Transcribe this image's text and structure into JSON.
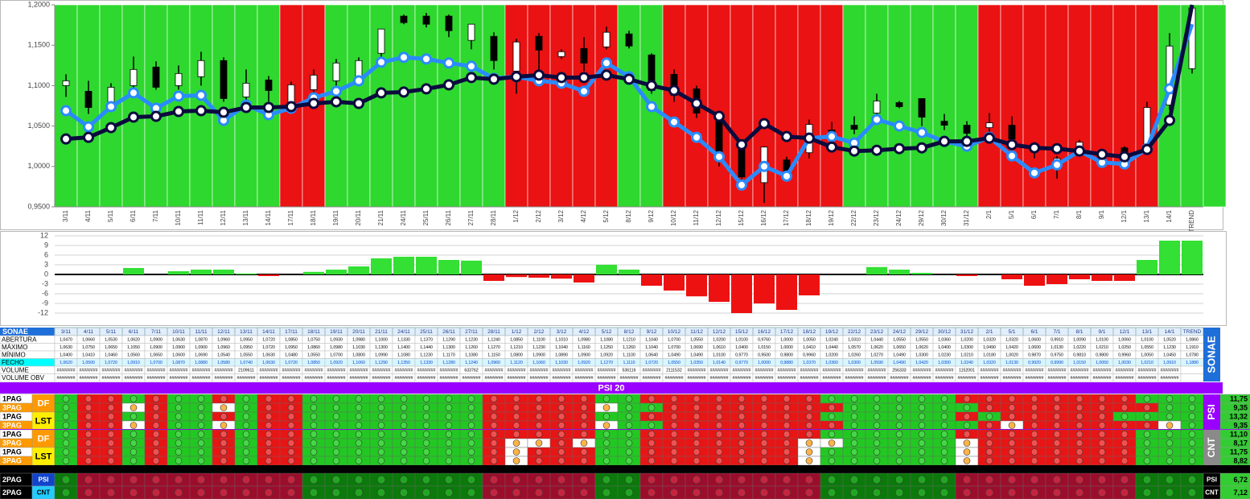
{
  "chart_data": [
    {
      "type": "candlestick",
      "categories": [
        "3/11",
        "4/11",
        "5/11",
        "6/11",
        "7/11",
        "10/11",
        "11/11",
        "12/11",
        "13/11",
        "14/11",
        "17/11",
        "18/11",
        "19/11",
        "20/11",
        "21/11",
        "24/11",
        "25/11",
        "26/11",
        "27/11",
        "28/11",
        "1/12",
        "2/12",
        "3/12",
        "4/12",
        "5/12",
        "8/12",
        "9/12",
        "10/12",
        "11/12",
        "12/12",
        "15/12",
        "16/12",
        "17/12",
        "18/12",
        "19/12",
        "22/12",
        "23/12",
        "24/12",
        "29/12",
        "30/12",
        "31/12",
        "2/1",
        "5/1",
        "6/1",
        "7/1",
        "8/1",
        "9/1",
        "12/1",
        "13/1",
        "14/1",
        "TREND"
      ],
      "open": [
        1.1,
        1.093,
        1.078,
        1.1,
        1.123,
        1.1,
        1.111,
        1.131,
        1.086,
        1.107,
        1.078,
        1.095,
        1.106,
        1.106,
        1.14,
        1.186,
        1.186,
        1.186,
        1.156,
        1.161,
        1.118,
        1.161,
        1.136,
        1.146,
        1.148,
        1.164,
        1.138,
        1.114,
        1.096,
        1.056,
        1.027,
        0.98,
        1.008,
        1.017,
        1.045,
        1.051,
        1.066,
        1.079,
        1.084,
        1.056,
        1.051,
        1.048,
        1.051,
        1.026,
        1.001,
        1.023,
        1.018,
        1.023,
        1.026,
        1.076,
        1.121
      ],
      "high": [
        1.114,
        1.106,
        1.103,
        1.136,
        1.13,
        1.125,
        1.142,
        1.135,
        1.12,
        1.112,
        1.105,
        1.12,
        1.133,
        1.135,
        1.17,
        1.188,
        1.19,
        1.188,
        1.176,
        1.166,
        1.158,
        1.165,
        1.145,
        1.16,
        1.173,
        1.168,
        1.14,
        1.12,
        1.1,
        1.062,
        1.03,
        1.025,
        1.012,
        1.058,
        1.055,
        1.062,
        1.09,
        1.081,
        1.084,
        1.065,
        1.056,
        1.066,
        1.062,
        1.03,
        1.013,
        1.033,
        1.02,
        1.025,
        1.08,
        1.165,
        1.196
      ],
      "low": [
        1.086,
        1.065,
        1.07,
        1.093,
        1.095,
        1.095,
        1.1,
        1.08,
        1.08,
        1.08,
        1.068,
        1.085,
        1.1,
        1.1,
        1.135,
        1.176,
        1.172,
        1.16,
        1.145,
        1.12,
        1.09,
        1.1,
        1.133,
        1.118,
        1.145,
        1.146,
        1.09,
        1.08,
        1.06,
        1.0,
        0.98,
        0.955,
        0.99,
        1.01,
        1.03,
        1.04,
        1.06,
        1.072,
        1.05,
        1.045,
        1.035,
        1.03,
        1.025,
        1.01,
        0.985,
        1.015,
        1.005,
        1.005,
        1.022,
        1.07,
        1.115
      ],
      "close": [
        1.106,
        1.073,
        1.098,
        1.12,
        1.098,
        1.115,
        1.131,
        1.084,
        1.103,
        1.094,
        1.101,
        1.113,
        1.128,
        1.131,
        1.17,
        1.178,
        1.176,
        1.168,
        1.176,
        1.131,
        1.154,
        1.144,
        1.142,
        1.128,
        1.166,
        1.149,
        1.094,
        1.088,
        1.066,
        1.006,
        0.987,
        1.024,
        0.994,
        1.052,
        1.035,
        1.046,
        1.081,
        1.074,
        1.061,
        1.051,
        1.041,
        1.054,
        1.034,
        1.018,
        1.01,
        1.03,
        1.011,
        1.011,
        1.073,
        1.149,
        1.196
      ],
      "up_color": "#ffffff",
      "down_color": "#000000",
      "lines": [
        {
          "color": "#2a8bff",
          "values": [
            1.069,
            1.049,
            1.074,
            1.091,
            1.072,
            1.087,
            1.088,
            1.057,
            1.076,
            1.064,
            1.072,
            1.085,
            1.093,
            1.106,
            1.129,
            1.135,
            1.133,
            1.128,
            1.124,
            1.109,
            1.111,
            1.106,
            1.103,
            1.093,
            1.128,
            1.111,
            1.074,
            1.055,
            1.036,
            1.012,
            0.977,
            1.0,
            0.988,
            1.035,
            1.037,
            1.029,
            1.058,
            1.05,
            1.042,
            1.031,
            1.025,
            1.036,
            1.013,
            0.992,
            1.002,
            1.019,
            1.005,
            1.003,
            1.022,
            1.096,
            1.176
          ]
        },
        {
          "color": "#0b0b3e",
          "values": [
            1.034,
            1.036,
            1.048,
            1.061,
            1.062,
            1.068,
            1.069,
            1.067,
            1.073,
            1.073,
            1.074,
            1.078,
            1.08,
            1.078,
            1.091,
            1.092,
            1.096,
            1.101,
            1.11,
            1.108,
            1.111,
            1.113,
            1.11,
            1.11,
            1.113,
            1.108,
            1.1,
            1.094,
            1.078,
            1.062,
            1.027,
            1.053,
            1.037,
            1.035,
            1.024,
            1.019,
            1.02,
            1.022,
            1.023,
            1.031,
            1.031,
            1.035,
            1.027,
            1.023,
            1.022,
            1.019,
            1.015,
            1.012,
            1.021,
            1.057,
            1.2
          ]
        }
      ],
      "band_colors": "ggggggggggrrggggggggrrrrrggrrrrrrrrggggggrrrrrrrrggg",
      "band_palette": {
        "g": "#2ed82e",
        "r": "#ea1212"
      },
      "ylim": [
        0.95,
        1.2
      ],
      "yticks": [
        {
          "value": 0.95,
          "label": "0,9500"
        },
        {
          "value": 1.0,
          "label": "1,0000"
        },
        {
          "value": 1.05,
          "label": "1,0500"
        },
        {
          "value": 1.1,
          "label": "1,1000"
        },
        {
          "value": 1.15,
          "label": "1,1500"
        },
        {
          "value": 1.2,
          "label": "1,2000"
        }
      ]
    },
    {
      "type": "bar",
      "values": [
        0,
        0,
        0,
        2,
        0,
        1,
        1.5,
        1.5,
        0.3,
        -0.5,
        0,
        0.8,
        1.5,
        2.5,
        5,
        5.5,
        5.5,
        4.5,
        4.3,
        -2,
        -0.8,
        -1,
        -1.3,
        -2.5,
        3,
        1.5,
        -3.5,
        -5,
        -6.8,
        -8.5,
        -12,
        -9,
        -11,
        -6.5,
        0,
        0,
        2.3,
        1.5,
        0.5,
        0,
        -0.5,
        0,
        -1.5,
        -3.5,
        -3,
        -1.5,
        -2,
        -2,
        4.5,
        10.5,
        10.5
      ],
      "positive_color": "#33e033",
      "negative_color": "#ee1111",
      "ylim": [
        -15,
        12
      ],
      "yticks": [
        -12,
        -9,
        -6,
        -3,
        0,
        3,
        6,
        9,
        12
      ],
      "grid": true
    }
  ],
  "table": {
    "title": "SONAE",
    "side_label": "SONAE",
    "rows": [
      {
        "label": "ABERTURA",
        "values": [
          "1,0470",
          "1,0660",
          "1,0530",
          "1,0620",
          "1,0900",
          "1,0630",
          "1,0870",
          "1,0960",
          "1,0950",
          "1,0720",
          "1,0850",
          "1,0750",
          "1,0930",
          "1,0980",
          "1,1000",
          "1,1330",
          "1,1370",
          "1,1290",
          "1,1230",
          "1,1240",
          "1,0850",
          "1,1100",
          "1,1010",
          "1,0980",
          "1,1080",
          "1,1210",
          "1,1040",
          "1,0700",
          "1,0550",
          "1,0200",
          "1,0100",
          "0,9760",
          "1,0000",
          "1,0050",
          "1,0240",
          "1,0310",
          "1,0440",
          "1,0550",
          "1,0550",
          "1,0360",
          "1,0200",
          "1,0320",
          "1,0320",
          "1,0600",
          "0,9910",
          "1,0090",
          "1,0100",
          "1,0060",
          "1,0100",
          "1,0520",
          "1,0860"
        ]
      },
      {
        "label": "MÁXIMO",
        "values": [
          "1,0630",
          "1,0750",
          "1,0650",
          "1,1050",
          "1,0900",
          "1,0900",
          "1,0900",
          "1,0960",
          "1,0950",
          "1,0720",
          "1,0950",
          "1,0860",
          "1,0980",
          "1,1030",
          "1,1300",
          "1,1400",
          "1,1440",
          "1,1300",
          "1,1260",
          "1,1270",
          "1,1210",
          "1,1230",
          "1,1040",
          "1,1160",
          "1,1250",
          "1,1260",
          "1,1040",
          "1,0700",
          "1,0690",
          "1,0610",
          "1,0400",
          "1,0150",
          "1,0000",
          "1,0410",
          "1,0440",
          "1,0570",
          "1,0620",
          "1,0650",
          "1,0620",
          "1,0400",
          "1,0300",
          "1,0490",
          "1,0420",
          "1,0600",
          "1,0130",
          "1,0220",
          "1,0210",
          "1,0250",
          "1,0550",
          "1,1230",
          "1,1910"
        ]
      },
      {
        "label": "MÍNIMO",
        "values": [
          "1,0400",
          "1,0410",
          "1,0460",
          "1,0560",
          "1,0650",
          "1,0600",
          "1,0690",
          "1,0540",
          "1,0550",
          "1,0630",
          "1,0480",
          "1,0550",
          "1,0700",
          "1,0800",
          "1,0990",
          "1,1080",
          "1,1230",
          "1,1170",
          "1,1080",
          "1,1150",
          "1,0800",
          "1,0900",
          "1,0890",
          "1,0900",
          "1,0920",
          "1,1100",
          "1,0640",
          "1,0490",
          "1,0490",
          "1,0100",
          "0,9770",
          "0,9500",
          "0,9800",
          "0,9960",
          "1,0200",
          "1,0260",
          "1,0270",
          "1,0490",
          "1,0300",
          "1,0230",
          "1,0210",
          "1,0180",
          "1,0020",
          "0,9870",
          "0,9750",
          "0,9810",
          "0,9800",
          "0,9960",
          "1,0050",
          "1,0450",
          "1,0780"
        ]
      },
      {
        "label": "FECHO",
        "values": [
          "1,0620",
          "1,0500",
          "1,0720",
          "1,0910",
          "1,0700",
          "1,0870",
          "1,0880",
          "1,0580",
          "1,0740",
          "1,0630",
          "1,0720",
          "1,0850",
          "1,0920",
          "1,1060",
          "1,1290",
          "1,1350",
          "1,1330",
          "1,1280",
          "1,1240",
          "1,0960",
          "1,1120",
          "1,1060",
          "1,1030",
          "1,0920",
          "1,1270",
          "1,1110",
          "1,0720",
          "1,0550",
          "1,0350",
          "1,0140",
          "0,9770",
          "1,0000",
          "0,9880",
          "1,0370",
          "1,0360",
          "1,0300",
          "1,0590",
          "1,0490",
          "1,0420",
          "1,0300",
          "1,0240",
          "1,0320",
          "1,0130",
          "0,9920",
          "0,9990",
          "1,0150",
          "1,0050",
          "1,0030",
          "1,0210",
          "1,0910",
          "1,1880"
        ]
      },
      {
        "label": "VOLUME",
        "values": [
          "########",
          "########",
          "########",
          "########",
          "########",
          "########",
          "########",
          "########",
          "2109611",
          "########",
          "########",
          "########",
          "########",
          "########",
          "########",
          "########",
          "########",
          "########",
          "633762",
          "########",
          "########",
          "########",
          "########",
          "########",
          "########",
          "536116",
          "########",
          "2111532",
          "########",
          "########",
          "########",
          "########",
          "########",
          "########",
          "########",
          "########",
          "########",
          "256333",
          "########",
          "########",
          "1152001",
          "########",
          "########",
          "########",
          "########",
          "########",
          "########",
          "########",
          "########",
          "########",
          null
        ]
      },
      {
        "label": "VOLUME OBV",
        "values": [
          "########",
          "########",
          "########",
          "########",
          "########",
          "########",
          "########",
          "########",
          "########",
          "########",
          "########",
          "########",
          "########",
          "########",
          "########",
          "########",
          "########",
          "########",
          "########",
          "########",
          "########",
          "########",
          "########",
          "########",
          "########",
          "########",
          "########",
          "########",
          "########",
          "########",
          "########",
          "########",
          "########",
          "########",
          "########",
          "########",
          "########",
          "########",
          "########",
          "########",
          "########",
          "########",
          "########",
          "########",
          "########",
          "########",
          "########",
          "########",
          "########",
          "########",
          null
        ]
      }
    ]
  },
  "signals": {
    "title": "PSI 20",
    "palette": {
      "g": {
        "bg": "#22c822",
        "dot": "#44d844"
      },
      "r": {
        "bg": "#e81515",
        "dot": "#f25050"
      },
      "o": {
        "bg": "#ffffff",
        "dot": "#ffb347"
      }
    },
    "total_palette": {
      "g": {
        "bg": "#0b7a0b",
        "dot": "#22a622"
      },
      "r": {
        "bg": "#9c0d2c",
        "dot": "#c4243f"
      }
    },
    "blocks": [
      {
        "label": "PSI",
        "color": "#9900ff",
        "rows": [
          {
            "label": "1PAG",
            "tag": "DF",
            "tag_color": "#ff9900",
            "cells": "grrgrggrgrrggggggggrrrrrggrrrrrrrrggggggrrrrrrrrggg",
            "score": "11,75"
          },
          {
            "label": "3PAG",
            "cells": "grrorggogrrggggggggrrrrroggrrrrrrrrggggggrrrrrrrrggg",
            "score": "9,35"
          },
          {
            "label": "1PAG",
            "tag": "LST",
            "tag_color": "#ffee00",
            "cells": "grrgrggrgrrggggggggrrrrrggrrrrrrrrggggggrgrrrrrgggg",
            "score": "13,32"
          },
          {
            "label": "3PAG",
            "cells": "grrorggogrrggggggggrrrrroggrrrrrrrrggggggrorrrrrrogg",
            "score": "9,35"
          }
        ]
      },
      {
        "label": "CNT",
        "color": "#8a8a8a",
        "rows": [
          {
            "label": "1PAG",
            "tag": "DF",
            "tag_color": "#ff9900",
            "cells": "grrgrggrgrrggggggggrrrrrggrrrrrrrrggggggrrrrrrrrggg",
            "score": "11,10"
          },
          {
            "label": "3PAG",
            "cells": "grrgrggrgrrggggggggrooroggrrrrrrroogggggorrrrrrrggg",
            "score": "8,17"
          },
          {
            "label": "1PAG",
            "tag": "LST",
            "tag_color": "#ffee00",
            "cells": "grrgrggrgrrggggggggrorrrggrrrrrrroggggggorrrrrrrggg",
            "score": "11,75"
          },
          {
            "label": "3PAG",
            "cells": "grrgrggrgrrggggggggrorrrggrrrrrrroggggggorrrrrrrggg",
            "score": "8,82"
          }
        ]
      }
    ],
    "totals": [
      {
        "label": "2PAG",
        "tag": "PSI",
        "tag_color": "#1144cc",
        "side": "PSI",
        "cells": "grrrrrrrrrrggggggggrrrrrggrrrrrrrrggggggrrrrrrrrggg",
        "score": "6,72"
      },
      {
        "label": "2PAG",
        "tag": "CNT",
        "tag_color": "#22ccff",
        "side": "CNT",
        "cells": "grrrrrrrrrrggggggggrrrrrggrrrrrrrrggggggrrrrrrrrggg",
        "score": "7,12"
      }
    ]
  }
}
